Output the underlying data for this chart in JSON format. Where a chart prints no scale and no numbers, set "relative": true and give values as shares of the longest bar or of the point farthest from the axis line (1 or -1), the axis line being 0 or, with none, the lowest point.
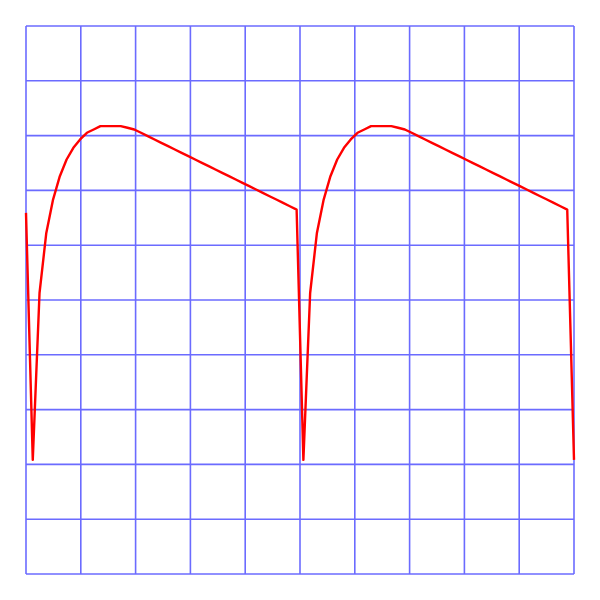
{
  "chart_data": {
    "type": "line",
    "relative": true,
    "grid": true,
    "tick_labels": false,
    "marker": "none",
    "line_style": "solid",
    "categories": [
      null,
      null,
      null,
      null,
      null,
      null,
      null,
      null,
      null,
      null,
      null,
      null,
      null,
      null,
      null,
      null,
      null,
      null,
      null,
      null,
      null,
      null,
      null,
      null,
      null,
      null,
      null,
      null,
      null,
      null,
      null,
      null,
      null,
      null,
      null,
      null,
      null,
      null,
      null,
      null,
      null,
      null,
      null,
      null,
      null,
      null,
      null,
      null,
      null,
      null,
      null,
      null,
      null,
      null,
      null,
      null,
      null,
      null,
      null,
      null,
      null,
      null,
      null,
      null,
      null,
      null,
      null,
      null,
      null,
      null,
      null,
      null,
      null,
      null,
      null,
      null,
      null,
      null,
      null,
      null,
      null,
      null
    ],
    "series": [
      {
        "color": "#ff0000",
        "values": [
          0.74,
          0,
          0.5,
          0.68,
          0.78,
          0.85,
          0.9,
          0.935,
          0.96,
          0.98,
          0.99,
          1,
          1,
          1,
          1,
          0.995,
          0.99,
          0.98,
          0.97,
          0.96,
          0.95,
          0.94,
          0.93,
          0.92,
          0.91,
          0.9,
          0.89,
          0.88,
          0.87,
          0.86,
          0.85,
          0.84,
          0.83,
          0.82,
          0.81,
          0.8,
          0.79,
          0.78,
          0.77,
          0.76,
          0.75,
          0,
          0.5,
          0.68,
          0.78,
          0.85,
          0.9,
          0.935,
          0.96,
          0.98,
          0.99,
          1,
          1,
          1,
          1,
          0.995,
          0.99,
          0.98,
          0.97,
          0.96,
          0.95,
          0.94,
          0.93,
          0.92,
          0.91,
          0.9,
          0.89,
          0.88,
          0.87,
          0.86,
          0.85,
          0.84,
          0.83,
          0.82,
          0.81,
          0.8,
          0.79,
          0.78,
          0.77,
          0.76,
          0.75,
          0
        ]
      }
    ]
  }
}
